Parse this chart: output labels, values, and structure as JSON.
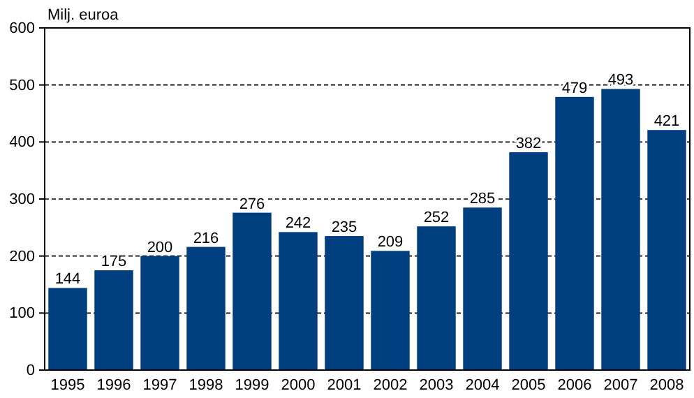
{
  "chart_data": {
    "type": "bar",
    "ylabel": "Milj. euroa",
    "categories": [
      "1995",
      "1996",
      "1997",
      "1998",
      "1999",
      "2000",
      "2001",
      "2002",
      "2003",
      "2004",
      "2005",
      "2006",
      "2007",
      "2008"
    ],
    "values": [
      144,
      175,
      200,
      216,
      276,
      242,
      235,
      209,
      252,
      285,
      382,
      479,
      493,
      421
    ],
    "color": "#003f7f",
    "ylim": [
      0,
      600
    ],
    "yticks": [
      0,
      100,
      200,
      300,
      400,
      500,
      600
    ],
    "grid": "y",
    "data_labels": true
  }
}
